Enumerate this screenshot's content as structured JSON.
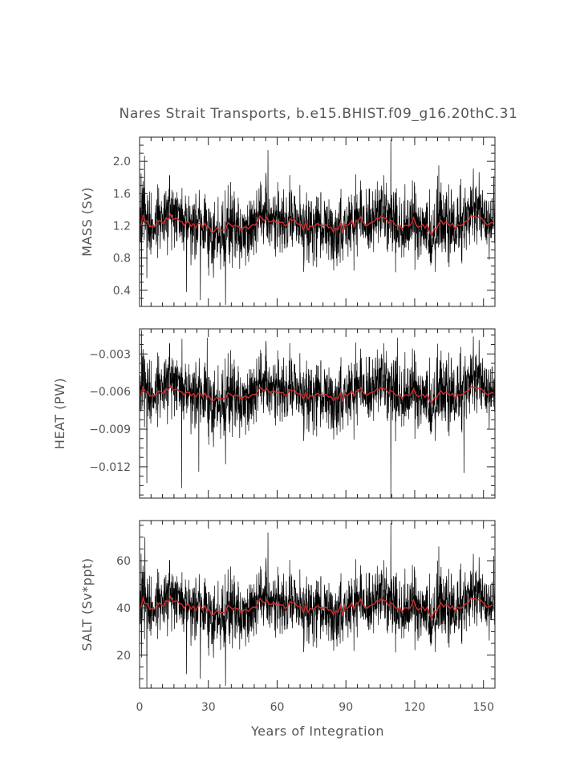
{
  "figure": {
    "title": "Nares Strait Transports, b.e15.BHIST.f09_g16.20thC.31",
    "xlabel": "Years of Integration"
  },
  "chart_data": [
    {
      "type": "line",
      "title": "Nares Strait Transports, b.e15.BHIST.f09_g16.20thC.31",
      "xlabel": "",
      "ylabel": "MASS (Sv)",
      "xlim": [
        0,
        155
      ],
      "ylim": [
        0.2,
        2.3
      ],
      "x_ticks": [
        0,
        30,
        60,
        90,
        120,
        150
      ],
      "y_ticks": [
        0.4,
        0.8,
        1.2,
        1.6,
        2.0
      ],
      "y_tick_labels": [
        "0.4",
        "0.8",
        "1.2",
        "1.6",
        "2.0"
      ],
      "grid": false,
      "colors": {
        "monthly": "#000000",
        "annual": "#cc2a2a"
      },
      "series": [
        {
          "kind": "monthly",
          "mean": 1.22,
          "sd": 0.2,
          "peaks": [
            [
              109.6,
              2.27
            ],
            [
              2.2,
              2.07
            ],
            [
              56.0,
              2.14
            ],
            [
              0.7,
              1.85
            ],
            [
              130.5,
              1.95
            ],
            [
              154.5,
              1.82
            ]
          ],
          "troughs": [
            [
              0.8,
              0.2
            ],
            [
              37.5,
              0.22
            ],
            [
              26.5,
              0.28
            ],
            [
              20.5,
              0.38
            ],
            [
              3.2,
              0.55
            ]
          ]
        },
        {
          "kind": "annual",
          "mean": 1.22,
          "amp": 0.13
        }
      ]
    },
    {
      "type": "line",
      "xlabel": "",
      "ylabel": "HEAT (PW)",
      "xlim": [
        0,
        155
      ],
      "ylim": [
        -0.0145,
        -0.001
      ],
      "x_ticks": [
        0,
        30,
        60,
        90,
        120,
        150
      ],
      "y_ticks": [
        -0.012,
        -0.009,
        -0.006,
        -0.003
      ],
      "y_tick_labels": [
        "−0.012",
        "−0.009",
        "−0.006",
        "−0.003"
      ],
      "grid": false,
      "colors": {
        "monthly": "#000000",
        "annual": "#cc2a2a"
      },
      "series": [
        {
          "kind": "monthly",
          "mean": -0.0061,
          "sd": 0.0013,
          "peaks": [
            [
              0.9,
              -0.0011
            ],
            [
              37.5,
              -0.0012
            ],
            [
              109.6,
              -0.0013
            ],
            [
              29.5,
              -0.0017
            ],
            [
              18.5,
              -0.0018
            ],
            [
              112.5,
              -0.0017
            ]
          ],
          "troughs": [
            [
              109.6,
              -0.0145
            ],
            [
              18.3,
              -0.0137
            ],
            [
              3.2,
              -0.0133
            ],
            [
              25.8,
              -0.0124
            ],
            [
              141.5,
              -0.0125
            ],
            [
              37.5,
              -0.0118
            ]
          ]
        },
        {
          "kind": "annual",
          "mean": -0.0062,
          "amp": 0.0007
        }
      ]
    },
    {
      "type": "line",
      "xlabel": "Years of Integration",
      "ylabel": "SALT (Sv*ppt)",
      "xlim": [
        0,
        155
      ],
      "ylim": [
        6,
        77
      ],
      "x_ticks": [
        0,
        30,
        60,
        90,
        120,
        150
      ],
      "x_tick_labels": [
        "0",
        "30",
        "60",
        "90",
        "120",
        "150"
      ],
      "y_ticks": [
        20,
        40,
        60
      ],
      "y_tick_labels": [
        "20",
        "40",
        "60"
      ],
      "grid": false,
      "colors": {
        "monthly": "#000000",
        "annual": "#cc2a2a"
      },
      "series": [
        {
          "kind": "monthly",
          "mean": 40.5,
          "sd": 6.5,
          "peaks": [
            [
              109.6,
              76
            ],
            [
              2.3,
              70
            ],
            [
              56.0,
              72
            ],
            [
              0.7,
              63
            ],
            [
              130.5,
              66
            ],
            [
              154.5,
              62
            ]
          ],
          "troughs": [
            [
              3.2,
              6
            ],
            [
              37.5,
              7
            ],
            [
              26.5,
              10
            ],
            [
              20.5,
              12
            ],
            [
              0.8,
              19
            ]
          ]
        },
        {
          "kind": "annual",
          "mean": 40.5,
          "amp": 4.5
        }
      ]
    }
  ]
}
